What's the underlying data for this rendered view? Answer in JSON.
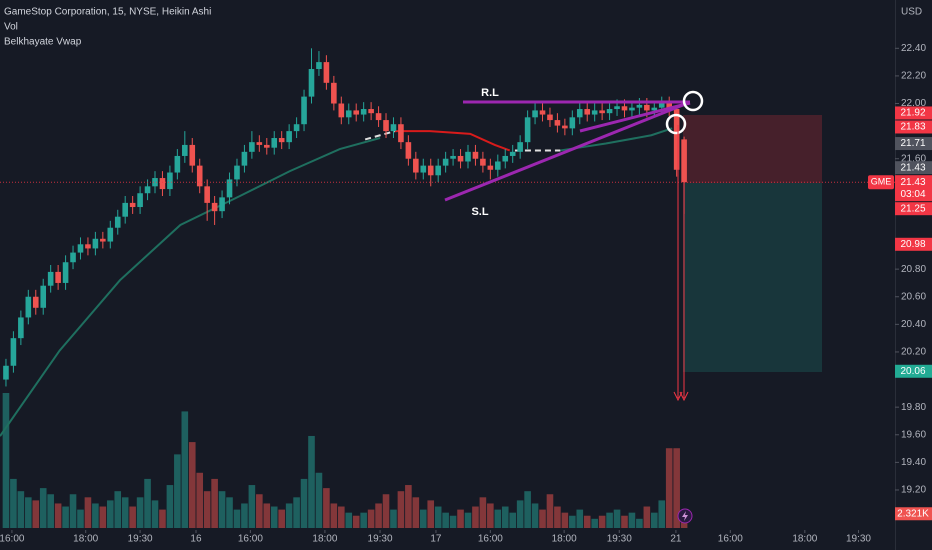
{
  "chart_data": {
    "type": "candlestick",
    "title": "GameStop Corporation, 15, NYSE, Heikin Ashi",
    "indicators": [
      "Vol",
      "Belkhayate Vwap"
    ],
    "currency": "USD",
    "up_color": "#26a69a",
    "down_color": "#ef5350",
    "grid": false,
    "ylim": [
      18.91,
      22.75
    ],
    "yticks": [
      {
        "value": 22.4,
        "label": "22.40"
      },
      {
        "value": 22.2,
        "label": "22.20"
      },
      {
        "value": 22.0,
        "label": "22.00"
      },
      {
        "value": 21.6,
        "label": "21.60"
      },
      {
        "value": 20.8,
        "label": "20.80"
      },
      {
        "value": 20.6,
        "label": "20.60"
      },
      {
        "value": 20.4,
        "label": "20.40"
      },
      {
        "value": 20.2,
        "label": "20.20"
      },
      {
        "value": 19.8,
        "label": "19.80"
      },
      {
        "value": 19.6,
        "label": "19.60"
      },
      {
        "value": 19.4,
        "label": "19.40"
      },
      {
        "value": 19.2,
        "label": "19.20"
      }
    ],
    "xlim": [
      -0.8,
      119.3
    ],
    "xticks": [
      {
        "value": 0.8,
        "label": "16:00"
      },
      {
        "value": 10.7,
        "label": "18:00"
      },
      {
        "value": 18,
        "label": "19:30"
      },
      {
        "value": 25.5,
        "label": "16"
      },
      {
        "value": 32.8,
        "label": "16:00"
      },
      {
        "value": 42.8,
        "label": "18:00"
      },
      {
        "value": 50.2,
        "label": "19:30"
      },
      {
        "value": 57.7,
        "label": "17"
      },
      {
        "value": 65,
        "label": "16:00"
      },
      {
        "value": 74.9,
        "label": "18:00"
      },
      {
        "value": 82.3,
        "label": "19:30"
      },
      {
        "value": 89.9,
        "label": "21"
      },
      {
        "value": 97.2,
        "label": "16:00"
      },
      {
        "value": 107.2,
        "label": "18:00"
      },
      {
        "value": 114.4,
        "label": "19:30"
      }
    ],
    "open": [
      20.0,
      20.1,
      20.3,
      20.45,
      20.6,
      20.52,
      20.68,
      20.78,
      20.7,
      20.85,
      20.92,
      20.98,
      20.95,
      21.02,
      21.0,
      21.1,
      21.18,
      21.28,
      21.25,
      21.35,
      21.4,
      21.46,
      21.38,
      21.5,
      21.62,
      21.7,
      21.55,
      21.4,
      21.28,
      21.22,
      21.32,
      21.45,
      21.55,
      21.65,
      21.72,
      21.7,
      21.68,
      21.75,
      21.72,
      21.8,
      21.85,
      22.05,
      22.25,
      22.3,
      22.15,
      22.0,
      21.9,
      21.95,
      21.92,
      21.96,
      21.93,
      21.88,
      21.8,
      21.85,
      21.72,
      21.6,
      21.5,
      21.55,
      21.48,
      21.55,
      21.6,
      21.62,
      21.58,
      21.65,
      21.6,
      21.55,
      21.52,
      21.58,
      21.62,
      21.65,
      21.72,
      21.9,
      21.95,
      21.92,
      21.88,
      21.84,
      21.82,
      21.9,
      21.96,
      21.92,
      21.95,
      21.93,
      21.96,
      21.98,
      21.95,
      21.97,
      21.99,
      21.95,
      21.97,
      22.0,
      21.96,
      21.74
    ],
    "high": [
      20.15,
      20.35,
      20.5,
      20.65,
      20.65,
      20.73,
      20.83,
      20.83,
      20.9,
      20.97,
      21.03,
      21.03,
      21.07,
      21.07,
      21.15,
      21.23,
      21.33,
      21.33,
      21.4,
      21.45,
      21.51,
      21.51,
      21.55,
      21.67,
      21.8,
      21.75,
      21.6,
      21.45,
      21.33,
      21.37,
      21.5,
      21.6,
      21.7,
      21.8,
      21.77,
      21.75,
      21.8,
      21.8,
      21.85,
      21.9,
      22.1,
      22.4,
      22.38,
      22.35,
      22.2,
      22.05,
      22.0,
      22.0,
      22.01,
      22.01,
      21.98,
      21.93,
      21.9,
      21.9,
      21.77,
      21.65,
      21.6,
      21.6,
      21.6,
      21.65,
      21.67,
      21.67,
      21.7,
      21.7,
      21.65,
      21.6,
      21.63,
      21.67,
      21.7,
      21.77,
      21.95,
      22.0,
      22.0,
      21.97,
      21.93,
      21.89,
      21.95,
      22.01,
      22.01,
      22.0,
      22.0,
      22.01,
      22.03,
      22.03,
      22.02,
      22.04,
      22.04,
      22.02,
      22.05,
      22.05,
      21.98,
      21.76
    ],
    "low": [
      19.95,
      20.05,
      20.25,
      20.4,
      20.47,
      20.47,
      20.63,
      20.65,
      20.65,
      20.8,
      20.87,
      20.9,
      20.9,
      20.95,
      20.95,
      21.05,
      21.13,
      21.2,
      21.2,
      21.3,
      21.35,
      21.33,
      21.33,
      21.45,
      21.57,
      21.5,
      21.35,
      21.15,
      21.12,
      21.17,
      21.27,
      21.4,
      21.5,
      21.6,
      21.65,
      21.63,
      21.63,
      21.67,
      21.67,
      21.75,
      21.8,
      22.0,
      22.2,
      22.1,
      21.95,
      21.85,
      21.85,
      21.87,
      21.87,
      21.88,
      21.83,
      21.75,
      21.75,
      21.67,
      21.55,
      21.45,
      21.45,
      21.4,
      21.43,
      21.5,
      21.55,
      21.53,
      21.53,
      21.55,
      21.5,
      21.45,
      21.47,
      21.53,
      21.57,
      21.6,
      21.67,
      21.85,
      21.87,
      21.83,
      21.79,
      21.77,
      21.77,
      21.85,
      21.87,
      21.87,
      21.88,
      21.88,
      21.91,
      21.9,
      21.9,
      21.92,
      21.9,
      21.9,
      21.92,
      21.91,
      21.47,
      21.2
    ],
    "close": [
      20.1,
      20.3,
      20.45,
      20.6,
      20.52,
      20.68,
      20.78,
      20.7,
      20.85,
      20.92,
      20.98,
      20.95,
      21.02,
      21.0,
      21.1,
      21.18,
      21.28,
      21.25,
      21.35,
      21.4,
      21.46,
      21.38,
      21.5,
      21.62,
      21.7,
      21.55,
      21.4,
      21.28,
      21.22,
      21.32,
      21.45,
      21.55,
      21.65,
      21.72,
      21.7,
      21.68,
      21.75,
      21.72,
      21.8,
      21.85,
      22.05,
      22.25,
      22.3,
      22.15,
      22.0,
      21.9,
      21.95,
      21.92,
      21.96,
      21.93,
      21.88,
      21.8,
      21.85,
      21.72,
      21.6,
      21.5,
      21.55,
      21.48,
      21.55,
      21.6,
      21.62,
      21.58,
      21.65,
      21.6,
      21.55,
      21.52,
      21.58,
      21.62,
      21.65,
      21.72,
      21.9,
      21.95,
      21.92,
      21.88,
      21.84,
      21.82,
      21.9,
      21.96,
      21.92,
      21.95,
      21.93,
      21.96,
      21.98,
      21.95,
      21.97,
      21.99,
      21.95,
      21.97,
      22.0,
      21.96,
      21.52,
      21.43
    ],
    "volume": {
      "values": [
        22000,
        8000,
        6000,
        5000,
        4500,
        6500,
        5500,
        4000,
        3500,
        5500,
        3000,
        5000,
        4000,
        3500,
        4500,
        6000,
        5000,
        3500,
        5000,
        8000,
        4500,
        3000,
        7000,
        12000,
        19000,
        14000,
        9000,
        6000,
        8000,
        6000,
        5000,
        3000,
        4000,
        7000,
        5500,
        4000,
        3500,
        3000,
        4000,
        5000,
        8000,
        15000,
        9000,
        6500,
        4000,
        3500,
        2500,
        2000,
        2500,
        3000,
        4000,
        5500,
        3000,
        6000,
        7000,
        5000,
        3000,
        4500,
        3500,
        2500,
        2000,
        3000,
        2500,
        3500,
        5000,
        4000,
        3000,
        3500,
        2500,
        4500,
        6000,
        4000,
        3000,
        5500,
        3500,
        2500,
        2000,
        3000,
        2000,
        1500,
        2000,
        2500,
        3000,
        2000,
        2500,
        1500,
        3500,
        2500,
        4500,
        13000,
        13000,
        2321
      ],
      "last_label": "2.321K",
      "lim": [
        0,
        22000
      ]
    },
    "lines": [
      {
        "color": "#1f6f5f",
        "x": [
          -0.8,
          7.2,
          15.3,
          23.4,
          31.4,
          38.1,
          44.8,
          50.2
        ],
        "values": [
          19.59,
          20.21,
          20.72,
          21.12,
          21.33,
          21.51,
          21.67,
          21.75
        ]
      },
      {
        "color": "#e0e0e0",
        "dash": true,
        "x": [
          48.2,
          52.2
        ],
        "values": [
          21.74,
          21.8
        ]
      },
      {
        "color": "#d81b1b",
        "x": [
          52.2,
          56.9,
          62.3,
          65.6,
          67.6
        ],
        "values": [
          21.8,
          21.8,
          21.78,
          21.7,
          21.66
        ]
      },
      {
        "color": "#e0e0e0",
        "dash": true,
        "x": [
          68.3,
          74.4
        ],
        "values": [
          21.66,
          21.66
        ]
      },
      {
        "color": "#1f6f5f",
        "x": [
          74.4,
          80.5,
          86.6,
          89.4
        ],
        "values": [
          21.66,
          21.71,
          21.77,
          21.82
        ]
      }
    ],
    "price_labels": [
      {
        "value": 21.92,
        "label": "21.92",
        "color": "#f23645"
      },
      {
        "value": 21.83,
        "label": "21.83",
        "color": "#f23645"
      },
      {
        "value": 21.71,
        "label": "21.71",
        "color": "#50535e"
      },
      {
        "value": 21.43,
        "label": "21.43",
        "color": "#50535e"
      },
      {
        "value": 21.25,
        "label": "21.25",
        "color": "#f23645"
      },
      {
        "value": 20.98,
        "label": "20.98",
        "color": "#f23645"
      },
      {
        "value": 20.06,
        "label": "20.06",
        "color": "#22ab94"
      }
    ],
    "last_price": {
      "value": 21.43,
      "label": "21.43",
      "symbol": "GME",
      "countdown": "03:04",
      "color": "#f23645"
    },
    "annotations": [
      "R.L",
      "S.L"
    ]
  }
}
